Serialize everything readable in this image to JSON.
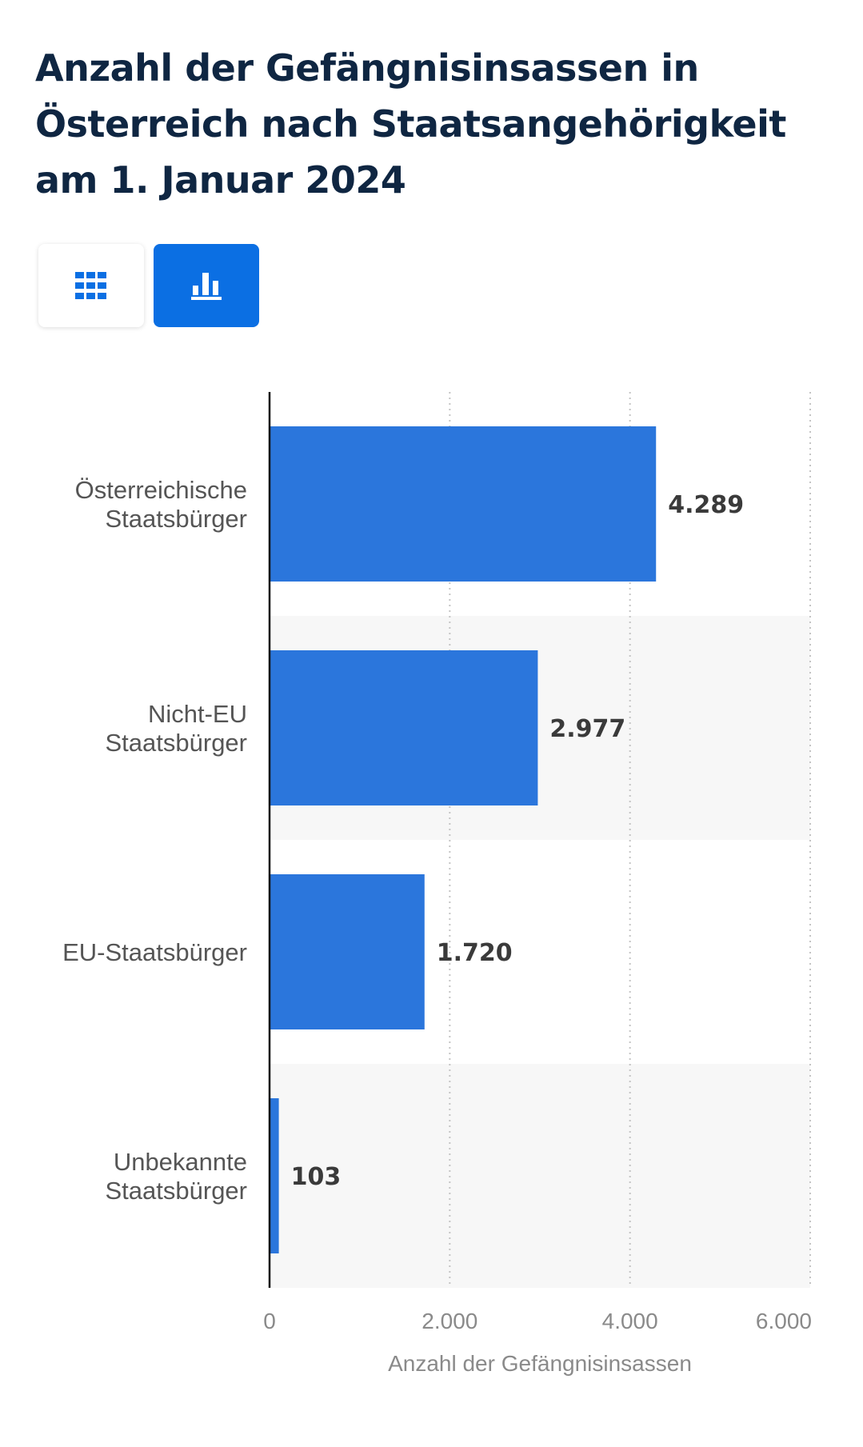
{
  "title": "Anzahl der Gefängnisinsassen in Österreich nach Staatsangehörigkeit am 1. Januar 2024",
  "view_toggle": {
    "table_icon": "grid-table-icon",
    "chart_icon": "bar-chart-icon",
    "active": "chart"
  },
  "colors": {
    "bar": "#2b76dc",
    "title": "#0f2642",
    "toggle_active": "#0b6fe3",
    "band": "#f7f7f7"
  },
  "chart_data": {
    "type": "bar",
    "orientation": "horizontal",
    "categories": [
      [
        "Österreichische",
        "Staatsbürger"
      ],
      [
        "Nicht-EU",
        "Staatsbürger"
      ],
      [
        "EU-Staatsbürger"
      ],
      [
        "Unbekannte",
        "Staatsbürger"
      ]
    ],
    "values": [
      4289,
      2977,
      1720,
      103
    ],
    "value_labels": [
      "4.289",
      "2.977",
      "1.720",
      "103"
    ],
    "xlim": [
      0,
      6000
    ],
    "xticks": [
      0,
      2000,
      4000,
      6000
    ],
    "xtick_labels": [
      "0",
      "2.000",
      "4.000",
      "6.000"
    ],
    "xlabel": "Anzahl der Gefängnisinsassen",
    "ylabel": "",
    "grid": "vertical dotted",
    "legend": "none"
  }
}
